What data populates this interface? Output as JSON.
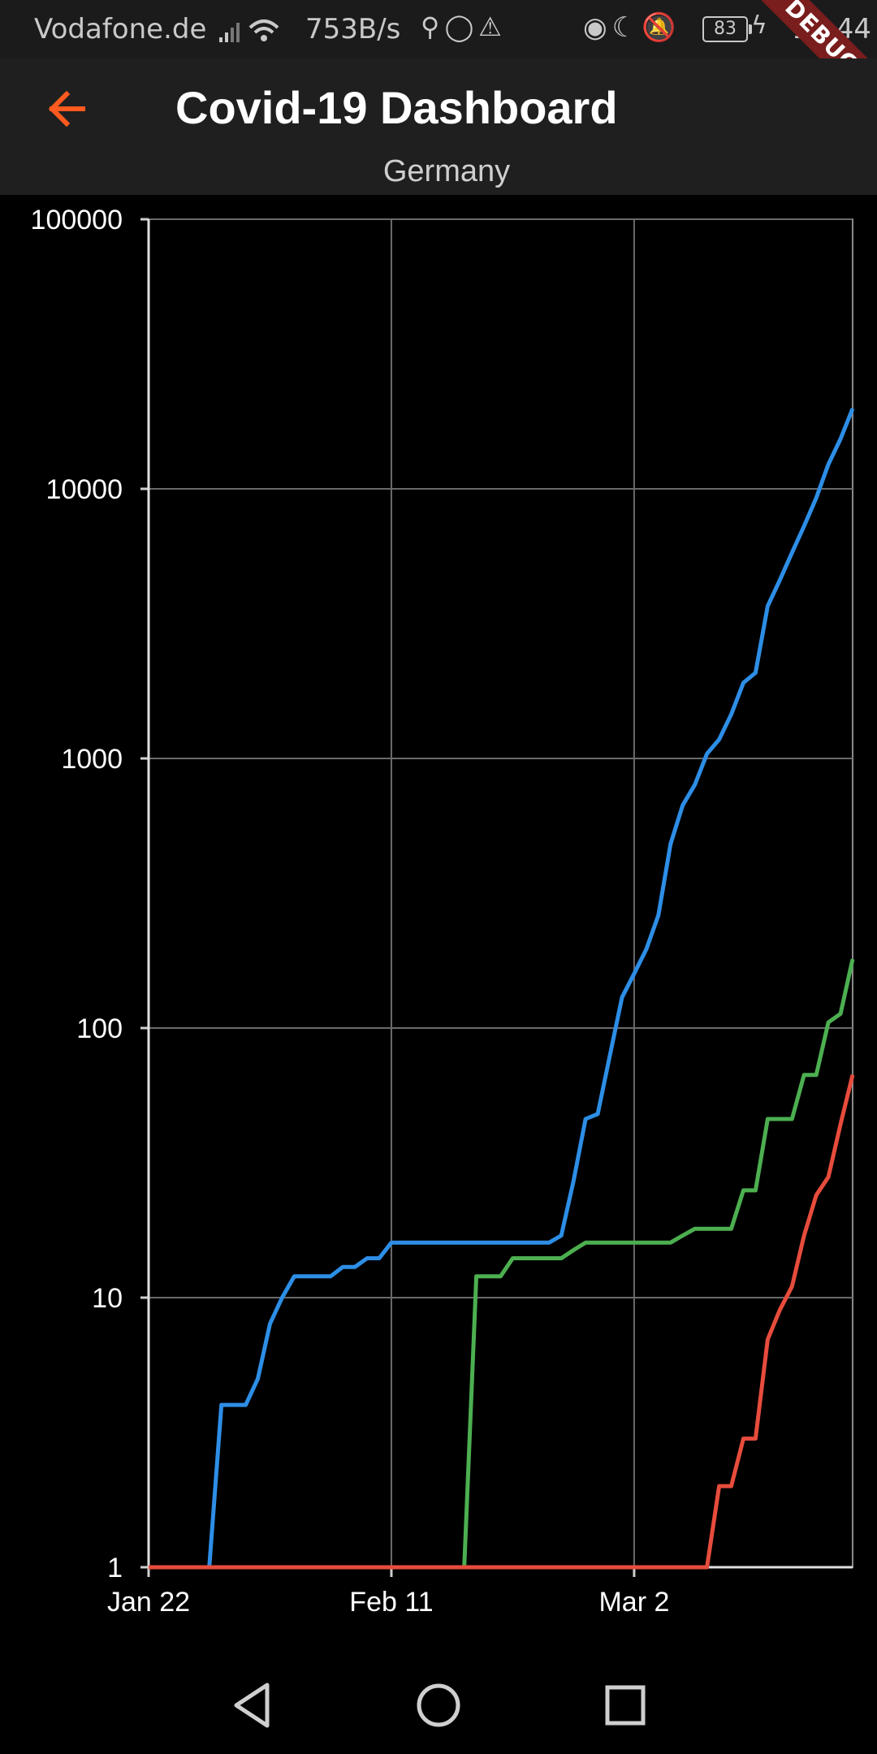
{
  "status_bar": {
    "carrier": "Vodafone.de",
    "network_speed": "753B/s",
    "battery": "83",
    "time": "10:44"
  },
  "debug_banner": "DEBUG",
  "app_bar": {
    "title": "Covid-19 Dashboard",
    "subtitle": "Germany"
  },
  "colors": {
    "accent": "#ff5a1f",
    "confirmed": "#2d8ee6",
    "recovered": "#4caf50",
    "deaths": "#e74c3c"
  },
  "chart_data": {
    "type": "line",
    "y_scale": "log",
    "ylim": [
      1,
      100000
    ],
    "yticks": [
      "100000",
      "10000",
      "1000",
      "100",
      "10",
      "1"
    ],
    "xticks": [
      "Jan 22",
      "Feb 11",
      "Mar 2"
    ],
    "grid": true,
    "series": [
      {
        "color": "#2d8ee6",
        "points": [
          [
            0,
            1
          ],
          [
            5,
            1
          ],
          [
            6,
            4
          ],
          [
            7,
            4
          ],
          [
            8,
            4
          ],
          [
            9,
            5
          ],
          [
            10,
            8
          ],
          [
            11,
            10
          ],
          [
            12,
            12
          ],
          [
            13,
            12
          ],
          [
            14,
            12
          ],
          [
            15,
            12
          ],
          [
            16,
            13
          ],
          [
            17,
            13
          ],
          [
            18,
            14
          ],
          [
            19,
            14
          ],
          [
            20,
            16
          ],
          [
            21,
            16
          ],
          [
            22,
            16
          ],
          [
            23,
            16
          ],
          [
            24,
            16
          ],
          [
            25,
            16
          ],
          [
            26,
            16
          ],
          [
            27,
            16
          ],
          [
            28,
            16
          ],
          [
            29,
            16
          ],
          [
            30,
            16
          ],
          [
            31,
            16
          ],
          [
            32,
            16
          ],
          [
            33,
            16
          ],
          [
            34,
            17
          ],
          [
            35,
            27
          ],
          [
            36,
            46
          ],
          [
            37,
            48
          ],
          [
            38,
            79
          ],
          [
            39,
            130
          ],
          [
            40,
            159
          ],
          [
            41,
            196
          ],
          [
            42,
            262
          ],
          [
            43,
            482
          ],
          [
            44,
            670
          ],
          [
            45,
            799
          ],
          [
            46,
            1040
          ],
          [
            47,
            1176
          ],
          [
            48,
            1457
          ],
          [
            49,
            1908
          ],
          [
            50,
            2078
          ],
          [
            51,
            3675
          ],
          [
            52,
            4585
          ],
          [
            53,
            5795
          ],
          [
            54,
            7272
          ],
          [
            55,
            9257
          ],
          [
            56,
            12327
          ],
          [
            57,
            15320
          ],
          [
            58,
            19848
          ]
        ]
      },
      {
        "color": "#4caf50",
        "points": [
          [
            0,
            1
          ],
          [
            26,
            1
          ],
          [
            27,
            12
          ],
          [
            28,
            12
          ],
          [
            29,
            12
          ],
          [
            30,
            14
          ],
          [
            31,
            14
          ],
          [
            32,
            14
          ],
          [
            33,
            14
          ],
          [
            34,
            14
          ],
          [
            35,
            15
          ],
          [
            36,
            16
          ],
          [
            37,
            16
          ],
          [
            38,
            16
          ],
          [
            39,
            16
          ],
          [
            40,
            16
          ],
          [
            41,
            16
          ],
          [
            42,
            16
          ],
          [
            43,
            16
          ],
          [
            44,
            17
          ],
          [
            45,
            18
          ],
          [
            46,
            18
          ],
          [
            47,
            18
          ],
          [
            48,
            18
          ],
          [
            49,
            25
          ],
          [
            50,
            25
          ],
          [
            51,
            46
          ],
          [
            52,
            46
          ],
          [
            53,
            46
          ],
          [
            54,
            67
          ],
          [
            55,
            67
          ],
          [
            56,
            105
          ],
          [
            57,
            113
          ],
          [
            58,
            180
          ]
        ]
      },
      {
        "color": "#e74c3c",
        "points": [
          [
            0,
            1
          ],
          [
            46,
            1
          ],
          [
            47,
            2
          ],
          [
            48,
            2
          ],
          [
            49,
            3
          ],
          [
            50,
            3
          ],
          [
            51,
            7
          ],
          [
            52,
            9
          ],
          [
            53,
            11
          ],
          [
            54,
            17
          ],
          [
            55,
            24
          ],
          [
            56,
            28
          ],
          [
            57,
            44
          ],
          [
            58,
            67
          ]
        ]
      }
    ]
  },
  "nav_bar": {
    "back": "back-triangle",
    "home": "home-circle",
    "recents": "recents-square"
  }
}
